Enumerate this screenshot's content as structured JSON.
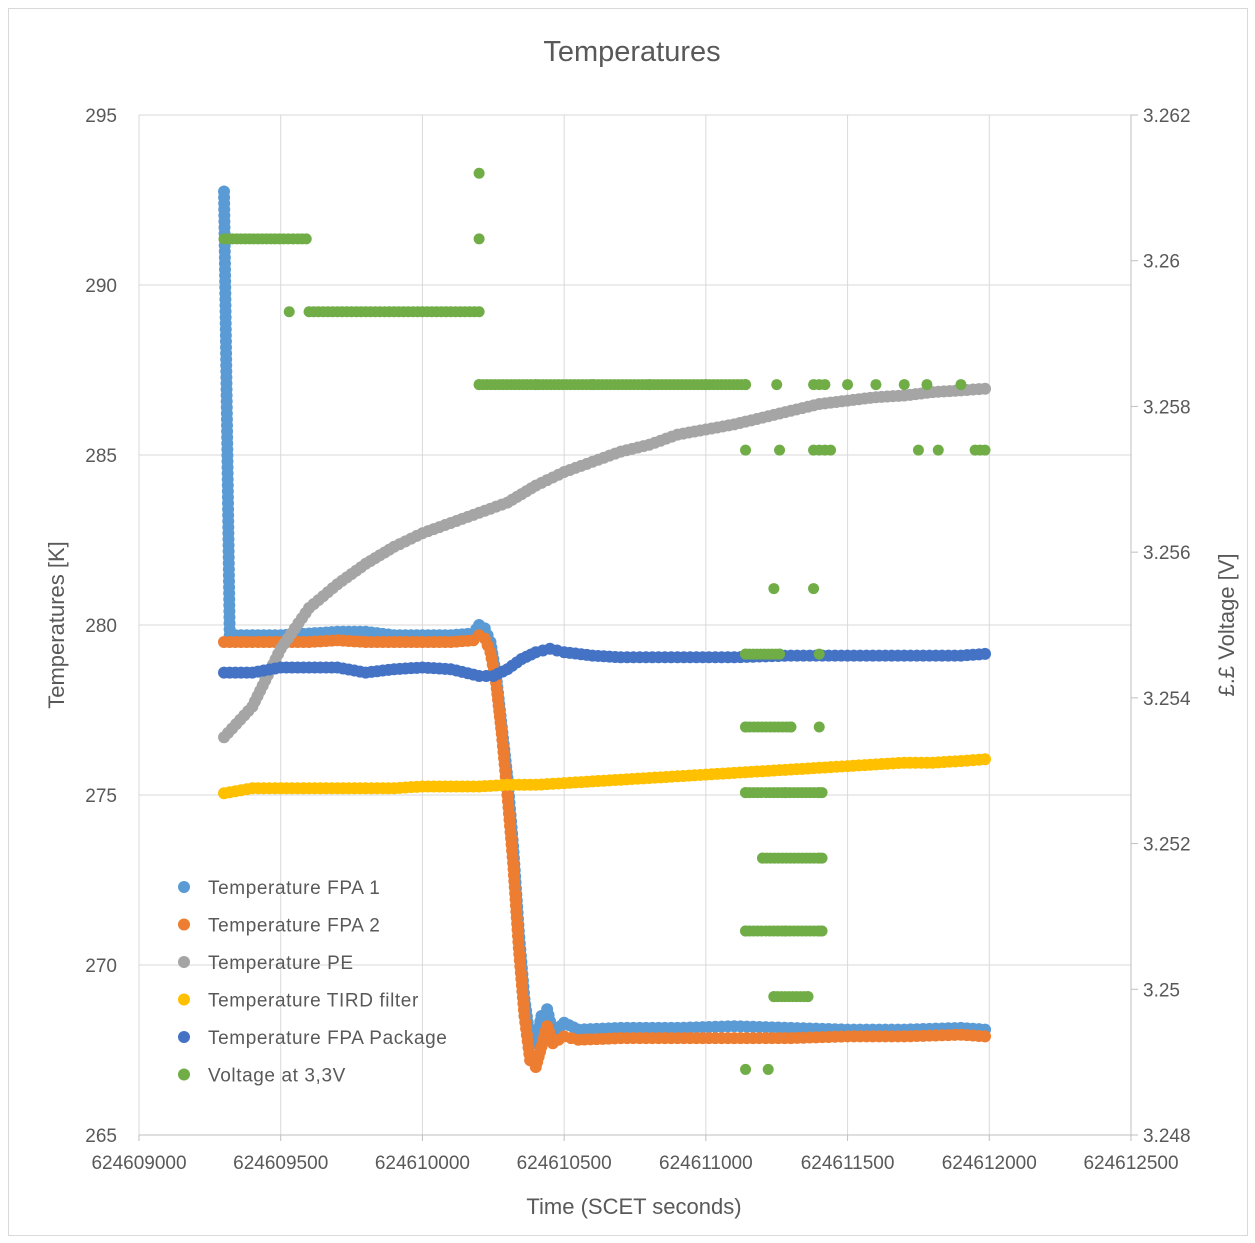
{
  "chart_data": {
    "type": "scatter",
    "title": "Temperatures",
    "xlabel": "Time (SCET seconds)",
    "ylabel": "Temperatures [K]",
    "y2label": "£.£ Voltage [V]",
    "xlim": [
      624609000,
      624612500
    ],
    "ylim": [
      265,
      295
    ],
    "y2lim": [
      3.248,
      3.262
    ],
    "x_ticks": [
      "624609000",
      "624609500",
      "624610000",
      "624610500",
      "624611000",
      "624611500",
      "624612000",
      "624612500"
    ],
    "y_ticks": [
      "265",
      "270",
      "275",
      "280",
      "285",
      "290",
      "295"
    ],
    "y2_ticks": [
      "3.248",
      "3.25",
      "3.252",
      "3.254",
      "3.256",
      "3.258",
      "3.26",
      "3.262"
    ],
    "grid": true,
    "legend_position": "bottom-left",
    "series": [
      {
        "name": "Temperature FPA 1",
        "color": "#5B9BD5",
        "axis": "left",
        "points": [
          [
            624609300,
            292.75
          ],
          [
            624609320,
            279.7
          ],
          [
            624609400,
            279.7
          ],
          [
            624609500,
            279.7
          ],
          [
            624609600,
            279.75
          ],
          [
            624609700,
            279.8
          ],
          [
            624609800,
            279.8
          ],
          [
            624609900,
            279.7
          ],
          [
            624610000,
            279.7
          ],
          [
            624610100,
            279.7
          ],
          [
            624610180,
            279.75
          ],
          [
            624610200,
            280.0
          ],
          [
            624610220,
            279.9
          ],
          [
            624610240,
            279.5
          ],
          [
            624610260,
            278.5
          ],
          [
            624610280,
            277.0
          ],
          [
            624610300,
            275.5
          ],
          [
            624610320,
            273.5
          ],
          [
            624610340,
            271.0
          ],
          [
            624610360,
            269.0
          ],
          [
            624610380,
            267.8
          ],
          [
            624610400,
            267.7
          ],
          [
            624610420,
            268.5
          ],
          [
            624610440,
            268.7
          ],
          [
            624610460,
            268.0
          ],
          [
            624610500,
            268.3
          ],
          [
            624610550,
            268.1
          ],
          [
            624610700,
            268.15
          ],
          [
            624610900,
            268.15
          ],
          [
            624611100,
            268.2
          ],
          [
            624611300,
            268.15
          ],
          [
            624611500,
            268.1
          ],
          [
            624611700,
            268.1
          ],
          [
            624611900,
            268.15
          ],
          [
            624611985,
            268.1
          ]
        ]
      },
      {
        "name": "Temperature FPA 2",
        "color": "#ED7D31",
        "axis": "left",
        "points": [
          [
            624609300,
            279.5
          ],
          [
            624609400,
            279.5
          ],
          [
            624609500,
            279.5
          ],
          [
            624609600,
            279.5
          ],
          [
            624609700,
            279.55
          ],
          [
            624609800,
            279.5
          ],
          [
            624609900,
            279.5
          ],
          [
            624610000,
            279.5
          ],
          [
            624610100,
            279.5
          ],
          [
            624610180,
            279.55
          ],
          [
            624610200,
            279.7
          ],
          [
            624610220,
            279.6
          ],
          [
            624610240,
            279.2
          ],
          [
            624610260,
            278.3
          ],
          [
            624610280,
            276.8
          ],
          [
            624610300,
            275.0
          ],
          [
            624610320,
            273.0
          ],
          [
            624610340,
            270.5
          ],
          [
            624610360,
            268.5
          ],
          [
            624610380,
            267.2
          ],
          [
            624610400,
            267.0
          ],
          [
            624610420,
            267.6
          ],
          [
            624610440,
            268.2
          ],
          [
            624610460,
            267.7
          ],
          [
            624610500,
            267.9
          ],
          [
            624610550,
            267.8
          ],
          [
            624610700,
            267.85
          ],
          [
            624610900,
            267.85
          ],
          [
            624611100,
            267.85
          ],
          [
            624611300,
            267.85
          ],
          [
            624611500,
            267.9
          ],
          [
            624611700,
            267.9
          ],
          [
            624611900,
            267.95
          ],
          [
            624611985,
            267.9
          ]
        ]
      },
      {
        "name": "Temperature PE",
        "color": "#A5A5A5",
        "axis": "left",
        "points": [
          [
            624609300,
            276.7
          ],
          [
            624609400,
            277.6
          ],
          [
            624609500,
            279.3
          ],
          [
            624609600,
            280.5
          ],
          [
            624609700,
            281.2
          ],
          [
            624609800,
            281.8
          ],
          [
            624609900,
            282.3
          ],
          [
            624610000,
            282.7
          ],
          [
            624610100,
            283.0
          ],
          [
            624610200,
            283.3
          ],
          [
            624610300,
            283.6
          ],
          [
            624610400,
            284.1
          ],
          [
            624610500,
            284.5
          ],
          [
            624610600,
            284.8
          ],
          [
            624610700,
            285.1
          ],
          [
            624610800,
            285.3
          ],
          [
            624610900,
            285.6
          ],
          [
            624611000,
            285.75
          ],
          [
            624611100,
            285.9
          ],
          [
            624611200,
            286.1
          ],
          [
            624611300,
            286.3
          ],
          [
            624611400,
            286.5
          ],
          [
            624611500,
            286.6
          ],
          [
            624611600,
            286.7
          ],
          [
            624611700,
            286.75
          ],
          [
            624611800,
            286.85
          ],
          [
            624611900,
            286.9
          ],
          [
            624611985,
            286.95
          ]
        ]
      },
      {
        "name": "Temperature TIRD filter",
        "color": "#FFC000",
        "axis": "left",
        "points": [
          [
            624609300,
            275.05
          ],
          [
            624609400,
            275.2
          ],
          [
            624609500,
            275.2
          ],
          [
            624609600,
            275.2
          ],
          [
            624609700,
            275.2
          ],
          [
            624609800,
            275.2
          ],
          [
            624609900,
            275.2
          ],
          [
            624610000,
            275.25
          ],
          [
            624610100,
            275.25
          ],
          [
            624610200,
            275.25
          ],
          [
            624610300,
            275.3
          ],
          [
            624610400,
            275.3
          ],
          [
            624610500,
            275.35
          ],
          [
            624610600,
            275.4
          ],
          [
            624610700,
            275.45
          ],
          [
            624610800,
            275.5
          ],
          [
            624610900,
            275.55
          ],
          [
            624611000,
            275.6
          ],
          [
            624611100,
            275.65
          ],
          [
            624611200,
            275.7
          ],
          [
            624611300,
            275.75
          ],
          [
            624611400,
            275.8
          ],
          [
            624611500,
            275.85
          ],
          [
            624611600,
            275.9
          ],
          [
            624611700,
            275.95
          ],
          [
            624611800,
            275.95
          ],
          [
            624611900,
            276.0
          ],
          [
            624611985,
            276.05
          ]
        ]
      },
      {
        "name": "Temperature FPA Package",
        "color": "#4472C4",
        "axis": "left",
        "points": [
          [
            624609300,
            278.6
          ],
          [
            624609400,
            278.6
          ],
          [
            624609500,
            278.75
          ],
          [
            624609600,
            278.75
          ],
          [
            624609700,
            278.75
          ],
          [
            624609800,
            278.6
          ],
          [
            624609900,
            278.7
          ],
          [
            624610000,
            278.75
          ],
          [
            624610100,
            278.7
          ],
          [
            624610200,
            278.5
          ],
          [
            624610250,
            278.5
          ],
          [
            624610300,
            278.7
          ],
          [
            624610350,
            279.0
          ],
          [
            624610400,
            279.2
          ],
          [
            624610450,
            279.3
          ],
          [
            624610500,
            279.2
          ],
          [
            624610600,
            279.1
          ],
          [
            624610700,
            279.05
          ],
          [
            624610900,
            279.05
          ],
          [
            624611100,
            279.05
          ],
          [
            624611300,
            279.1
          ],
          [
            624611500,
            279.1
          ],
          [
            624611700,
            279.1
          ],
          [
            624611900,
            279.1
          ],
          [
            624611985,
            279.15
          ]
        ]
      },
      {
        "name": "Voltage at 3,3V",
        "color": "#70AD47",
        "axis": "right",
        "points": [
          [
            624609300,
            3.2603
          ],
          [
            624609330,
            3.2603
          ],
          [
            624609360,
            3.2603
          ],
          [
            624609390,
            3.2603
          ],
          [
            624609420,
            3.2603
          ],
          [
            624609450,
            3.2603
          ],
          [
            624609480,
            3.2603
          ],
          [
            624609510,
            3.2603
          ],
          [
            624609560,
            3.2603
          ],
          [
            624609590,
            3.2603
          ],
          [
            624609530,
            3.2593
          ],
          [
            624609600,
            3.2593
          ],
          [
            624609650,
            3.2593
          ],
          [
            624609700,
            3.2593
          ],
          [
            624609750,
            3.2593
          ],
          [
            624609800,
            3.2593
          ],
          [
            624609850,
            3.2593
          ],
          [
            624609900,
            3.2593
          ],
          [
            624609950,
            3.2593
          ],
          [
            624610000,
            3.2593
          ],
          [
            624610050,
            3.2593
          ],
          [
            624610100,
            3.2593
          ],
          [
            624610150,
            3.2593
          ],
          [
            624610200,
            3.2593
          ],
          [
            624610200,
            3.2612
          ],
          [
            624610200,
            3.2603
          ],
          [
            624610200,
            3.2583
          ],
          [
            624610400,
            3.2583
          ],
          [
            624610600,
            3.2583
          ],
          [
            624610800,
            3.2583
          ],
          [
            624611000,
            3.2583
          ],
          [
            624611140,
            3.2583
          ],
          [
            624611250,
            3.2583
          ],
          [
            624611380,
            3.2583
          ],
          [
            624611420,
            3.2583
          ],
          [
            624611500,
            3.2583
          ],
          [
            624611600,
            3.2583
          ],
          [
            624611700,
            3.2583
          ],
          [
            624611780,
            3.2583
          ],
          [
            624611900,
            3.2583
          ],
          [
            624611140,
            3.2574
          ],
          [
            624611260,
            3.2574
          ],
          [
            624611380,
            3.2574
          ],
          [
            624611440,
            3.2574
          ],
          [
            624611750,
            3.2574
          ],
          [
            624611820,
            3.2574
          ],
          [
            624611950,
            3.2574
          ],
          [
            624611985,
            3.2574
          ],
          [
            624611240,
            3.2555
          ],
          [
            624611380,
            3.2555
          ],
          [
            624611140,
            3.2546
          ],
          [
            624611260,
            3.2546
          ],
          [
            624611400,
            3.2546
          ],
          [
            624611140,
            3.2536
          ],
          [
            624611300,
            3.2536
          ],
          [
            624611400,
            3.2536
          ],
          [
            624611140,
            3.2527
          ],
          [
            624611280,
            3.2527
          ],
          [
            624611400,
            3.2527
          ],
          [
            624611200,
            3.2518
          ],
          [
            624611400,
            3.2518
          ],
          [
            624611140,
            3.2508
          ],
          [
            624611280,
            3.2508
          ],
          [
            624611400,
            3.2508
          ],
          [
            624611240,
            3.2499
          ],
          [
            624611360,
            3.2499
          ],
          [
            624611140,
            3.2489
          ],
          [
            624611220,
            3.2489
          ]
        ]
      }
    ]
  }
}
